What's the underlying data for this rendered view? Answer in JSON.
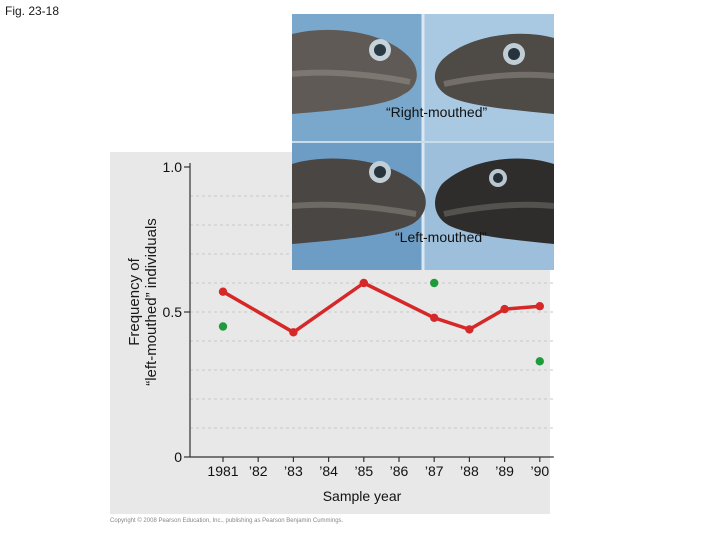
{
  "figure_label": "Fig. 23-18",
  "photo_captions": {
    "top": "“Right-mouthed”",
    "bottom": "“Left-mouthed”"
  },
  "copyright": "Copyright © 2008 Pearson Education, Inc., publishing as Pearson Benjamin Cummings.",
  "colors": {
    "line": "#d62828",
    "dots": "#1e9c3c",
    "panel": "#e8e8e8",
    "photo_bg": "#6fa0c7"
  },
  "chart_data": {
    "type": "line",
    "title": "",
    "xlabel": "Sample year",
    "ylabel_lines": [
      "Frequency of",
      "“left-mouthed” individuals"
    ],
    "ylim": [
      0,
      1.0
    ],
    "yticks": [
      "0",
      "0.5",
      "1.0"
    ],
    "ytick_values": [
      0,
      0.5,
      1.0
    ],
    "xticks": [
      "1981",
      "’82",
      "’83",
      "’84",
      "’85",
      "’86",
      "’87",
      "’88",
      "’89",
      "’90"
    ],
    "grid": true,
    "series": [
      {
        "style": "red-line-with-dots",
        "x": [
          "1981",
          "’83",
          "’85",
          "’87",
          "’88",
          "’89",
          "’90"
        ],
        "values": [
          0.57,
          0.43,
          0.6,
          0.48,
          0.44,
          0.51,
          0.52
        ]
      },
      {
        "style": "green-points",
        "x": [
          "1981",
          "’87",
          "’90"
        ],
        "values": [
          0.45,
          0.6,
          0.33
        ]
      }
    ]
  }
}
